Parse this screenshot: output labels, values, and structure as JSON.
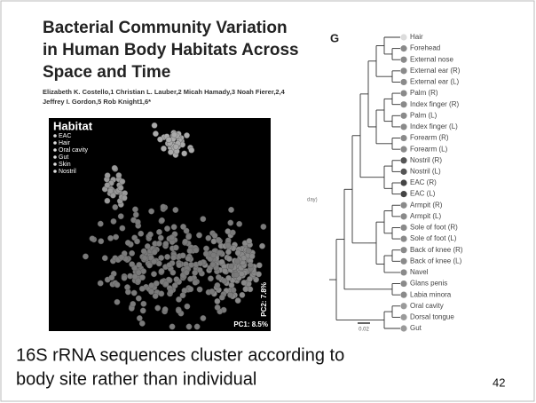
{
  "paper": {
    "title_lines": [
      "Bacterial Community Variation",
      "in Human Body Habitats Across",
      "Space and Time"
    ],
    "authors_lines": [
      "Elizabeth K. Costello,1 Christian L. Lauber,2 Micah Hamady,3 Noah Fierer,2,4",
      "Jeffrey I. Gordon,5 Rob Knight1,6*"
    ]
  },
  "pcoa": {
    "legend_title": "Habitat",
    "legend": [
      "EAC",
      "Hair",
      "Oral cavity",
      "Gut",
      "Skin",
      "Nostril"
    ],
    "x_label": "PC1: 8.5%",
    "y_label": "PC2: 7.8%"
  },
  "tree": {
    "panel": "G",
    "side_label": "day)",
    "scale_label": "0.02",
    "leaves": [
      {
        "label": "Hair",
        "color": "#dcdcdc"
      },
      {
        "label": "Forehead",
        "color": "#8a8a8a"
      },
      {
        "label": "External nose",
        "color": "#8a8a8a"
      },
      {
        "label": "External ear (R)",
        "color": "#8a8a8a"
      },
      {
        "label": "External ear (L)",
        "color": "#8a8a8a"
      },
      {
        "label": "Palm (R)",
        "color": "#8a8a8a"
      },
      {
        "label": "Index finger (R)",
        "color": "#8a8a8a"
      },
      {
        "label": "Palm (L)",
        "color": "#8a8a8a"
      },
      {
        "label": "Index finger (L)",
        "color": "#8a8a8a"
      },
      {
        "label": "Forearm (R)",
        "color": "#8a8a8a"
      },
      {
        "label": "Forearm (L)",
        "color": "#8a8a8a"
      },
      {
        "label": "Nostril (R)",
        "color": "#555555"
      },
      {
        "label": "Nostril (L)",
        "color": "#555555"
      },
      {
        "label": "EAC (R)",
        "color": "#444444"
      },
      {
        "label": "EAC (L)",
        "color": "#444444"
      },
      {
        "label": "Armpit (R)",
        "color": "#8a8a8a"
      },
      {
        "label": "Armpit (L)",
        "color": "#8a8a8a"
      },
      {
        "label": "Sole of foot (R)",
        "color": "#8a8a8a"
      },
      {
        "label": "Sole of foot (L)",
        "color": "#8a8a8a"
      },
      {
        "label": "Back of knee (R)",
        "color": "#8a8a8a"
      },
      {
        "label": "Back of knee (L)",
        "color": "#8a8a8a"
      },
      {
        "label": "Navel",
        "color": "#8a8a8a"
      },
      {
        "label": "Glans penis",
        "color": "#8a8a8a"
      },
      {
        "label": "Labia minora",
        "color": "#8a8a8a"
      },
      {
        "label": "Oral cavity",
        "color": "#9a9a9a"
      },
      {
        "label": "Dorsal tongue",
        "color": "#9a9a9a"
      },
      {
        "label": "Gut",
        "color": "#9a9a9a"
      }
    ]
  },
  "caption_lines": [
    "16S rRNA sequences cluster according to",
    "body site rather than individual"
  ],
  "page_number": "42"
}
